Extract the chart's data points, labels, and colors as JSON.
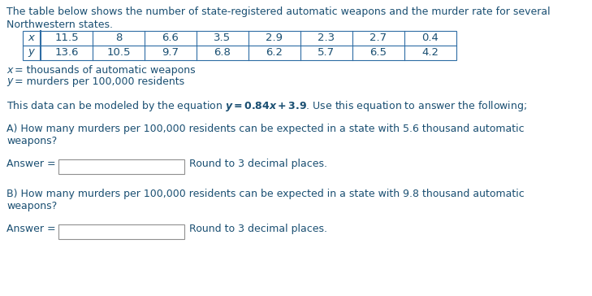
{
  "title_line1": "The table below shows the number of state-registered automatic weapons and the murder rate for several",
  "title_line2": "Northwestern states.",
  "x_values": [
    "11.5",
    "8",
    "6.6",
    "3.5",
    "2.9",
    "2.3",
    "2.7",
    "0.4"
  ],
  "y_values": [
    "13.6",
    "10.5",
    "9.7",
    "6.8",
    "6.2",
    "5.7",
    "6.5",
    "4.2"
  ],
  "x_description": "= thousands of automatic weapons",
  "y_description": "= murders per 100,000 residents",
  "equation_line": "This data can be modeled by the equation $\\boldsymbol{y = 0.84x + 3.9}$. Use this equation to answer the following;",
  "question_a_line1": "A) How many murders per 100,000 residents can be expected in a state with 5.6 thousand automatic",
  "question_a_line2": "weapons?",
  "question_b_line1": "B) How many murders per 100,000 residents can be expected in a state with 9.8 thousand automatic",
  "question_b_line2": "weapons?",
  "answer_label": "Answer = ",
  "round_text": "Round to 3 decimal places.",
  "text_color": "#1a4f72",
  "table_border_color": "#2e6da4",
  "bg_color": "#ffffff",
  "font_size_main": 9.0,
  "font_size_table": 9.5
}
